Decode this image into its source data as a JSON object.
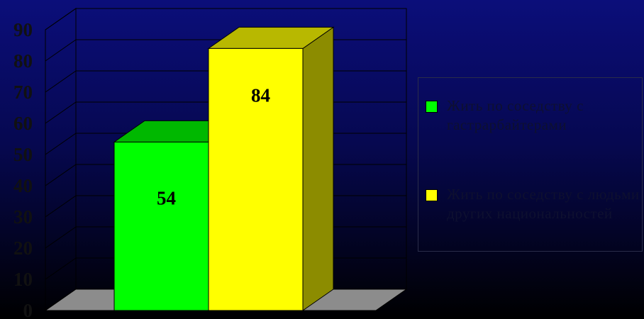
{
  "chart_data": {
    "type": "bar",
    "style": "3d",
    "title": "",
    "xlabel": "",
    "ylabel": "",
    "ylim": [
      0,
      90
    ],
    "yticks": [
      "0",
      "10",
      "20",
      "30",
      "40",
      "50",
      "60",
      "70",
      "80",
      "90"
    ],
    "grid": true,
    "legend_position": "right",
    "series": [
      {
        "name": "Жить по соседству с гастрарбайтерами",
        "value": 54,
        "value_label": "54",
        "color": "#00ff00"
      },
      {
        "name": "Жить по соседству с людьми других национальностей",
        "value": 84,
        "value_label": "84",
        "color": "#ffff00"
      }
    ]
  },
  "colors": {
    "background_top": "#0b0e7a",
    "background_bottom": "#000000",
    "floor": "#8c8c8c",
    "grid": "#000000"
  }
}
